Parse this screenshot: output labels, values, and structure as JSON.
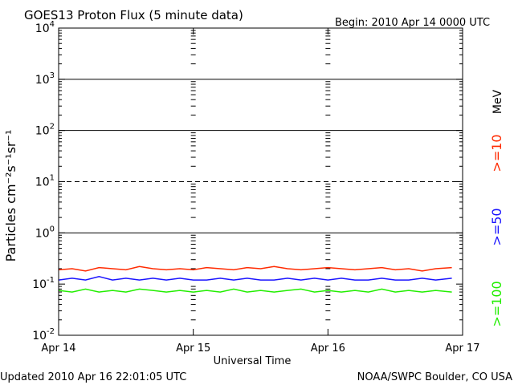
{
  "header": {
    "title": "GOES13 Proton Flux (5 minute data)",
    "begin": "Begin: 2010 Apr 14 0000 UTC"
  },
  "footer": {
    "updated": "Updated 2010 Apr 16 22:01:05 UTC",
    "credit": "NOAA/SWPC Boulder, CO USA"
  },
  "colors": {
    "ge10": "#ff2a00",
    "ge50": "#1a14ff",
    "ge100": "#22ee00",
    "axis": "#000000",
    "background": "#ffffff"
  },
  "chart_data": {
    "type": "line",
    "title": "GOES13 Proton Flux (5 minute data)",
    "xlabel": "Universal Time",
    "ylabel": "Particles cm⁻²s⁻¹sr⁻¹",
    "yscale": "log",
    "ylim": [
      0.01,
      10000
    ],
    "y_ticks": [
      {
        "value": 0.01,
        "base": "10",
        "exp": "-2"
      },
      {
        "value": 0.1,
        "base": "10",
        "exp": "-1"
      },
      {
        "value": 1,
        "base": "10",
        "exp": "0"
      },
      {
        "value": 10,
        "base": "10",
        "exp": "1"
      },
      {
        "value": 100,
        "base": "10",
        "exp": "2"
      },
      {
        "value": 1000,
        "base": "10",
        "exp": "3"
      },
      {
        "value": 10000,
        "base": "10",
        "exp": "4"
      }
    ],
    "xlim_days": [
      0,
      3
    ],
    "x_ticks": [
      {
        "day": 0,
        "label": "Apr 14"
      },
      {
        "day": 1,
        "label": "Apr 15"
      },
      {
        "day": 2,
        "label": "Apr 16"
      },
      {
        "day": 3,
        "label": "Apr 17"
      }
    ],
    "threshold_lines": [
      {
        "value": 1,
        "style": "solid"
      },
      {
        "value": 10,
        "style": "dashed"
      },
      {
        "value": 100,
        "style": "solid"
      },
      {
        "value": 1000,
        "style": "solid"
      }
    ],
    "energy_unit": "MeV",
    "series": [
      {
        "name": ">=10",
        "color": "#ff2a00",
        "x": [
          0,
          0.1,
          0.2,
          0.3,
          0.4,
          0.5,
          0.6,
          0.7,
          0.8,
          0.9,
          1.0,
          1.1,
          1.2,
          1.3,
          1.4,
          1.5,
          1.6,
          1.7,
          1.8,
          1.9,
          2.0,
          2.1,
          2.2,
          2.3,
          2.4,
          2.5,
          2.6,
          2.7,
          2.8,
          2.92
        ],
        "values": [
          0.19,
          0.2,
          0.18,
          0.21,
          0.2,
          0.19,
          0.22,
          0.2,
          0.19,
          0.2,
          0.19,
          0.21,
          0.2,
          0.19,
          0.21,
          0.2,
          0.22,
          0.2,
          0.19,
          0.2,
          0.21,
          0.2,
          0.19,
          0.2,
          0.21,
          0.19,
          0.2,
          0.18,
          0.2,
          0.21
        ]
      },
      {
        "name": ">=50",
        "color": "#1a14ff",
        "x": [
          0,
          0.1,
          0.2,
          0.3,
          0.4,
          0.5,
          0.6,
          0.7,
          0.8,
          0.9,
          1.0,
          1.1,
          1.2,
          1.3,
          1.4,
          1.5,
          1.6,
          1.7,
          1.8,
          1.9,
          2.0,
          2.1,
          2.2,
          2.3,
          2.4,
          2.5,
          2.6,
          2.7,
          2.8,
          2.92
        ],
        "values": [
          0.12,
          0.13,
          0.12,
          0.14,
          0.12,
          0.13,
          0.12,
          0.13,
          0.12,
          0.13,
          0.12,
          0.12,
          0.13,
          0.12,
          0.13,
          0.12,
          0.12,
          0.13,
          0.12,
          0.13,
          0.12,
          0.13,
          0.12,
          0.12,
          0.13,
          0.12,
          0.12,
          0.13,
          0.12,
          0.13
        ]
      },
      {
        "name": ">=100",
        "color": "#22ee00",
        "x": [
          0,
          0.1,
          0.2,
          0.3,
          0.4,
          0.5,
          0.6,
          0.7,
          0.8,
          0.9,
          1.0,
          1.1,
          1.2,
          1.3,
          1.4,
          1.5,
          1.6,
          1.7,
          1.8,
          1.9,
          2.0,
          2.1,
          2.2,
          2.3,
          2.4,
          2.5,
          2.6,
          2.7,
          2.8,
          2.92
        ],
        "values": [
          0.075,
          0.07,
          0.08,
          0.07,
          0.075,
          0.07,
          0.08,
          0.075,
          0.07,
          0.075,
          0.07,
          0.075,
          0.07,
          0.08,
          0.07,
          0.075,
          0.07,
          0.075,
          0.08,
          0.07,
          0.075,
          0.07,
          0.075,
          0.07,
          0.08,
          0.07,
          0.075,
          0.07,
          0.075,
          0.07
        ]
      }
    ]
  }
}
